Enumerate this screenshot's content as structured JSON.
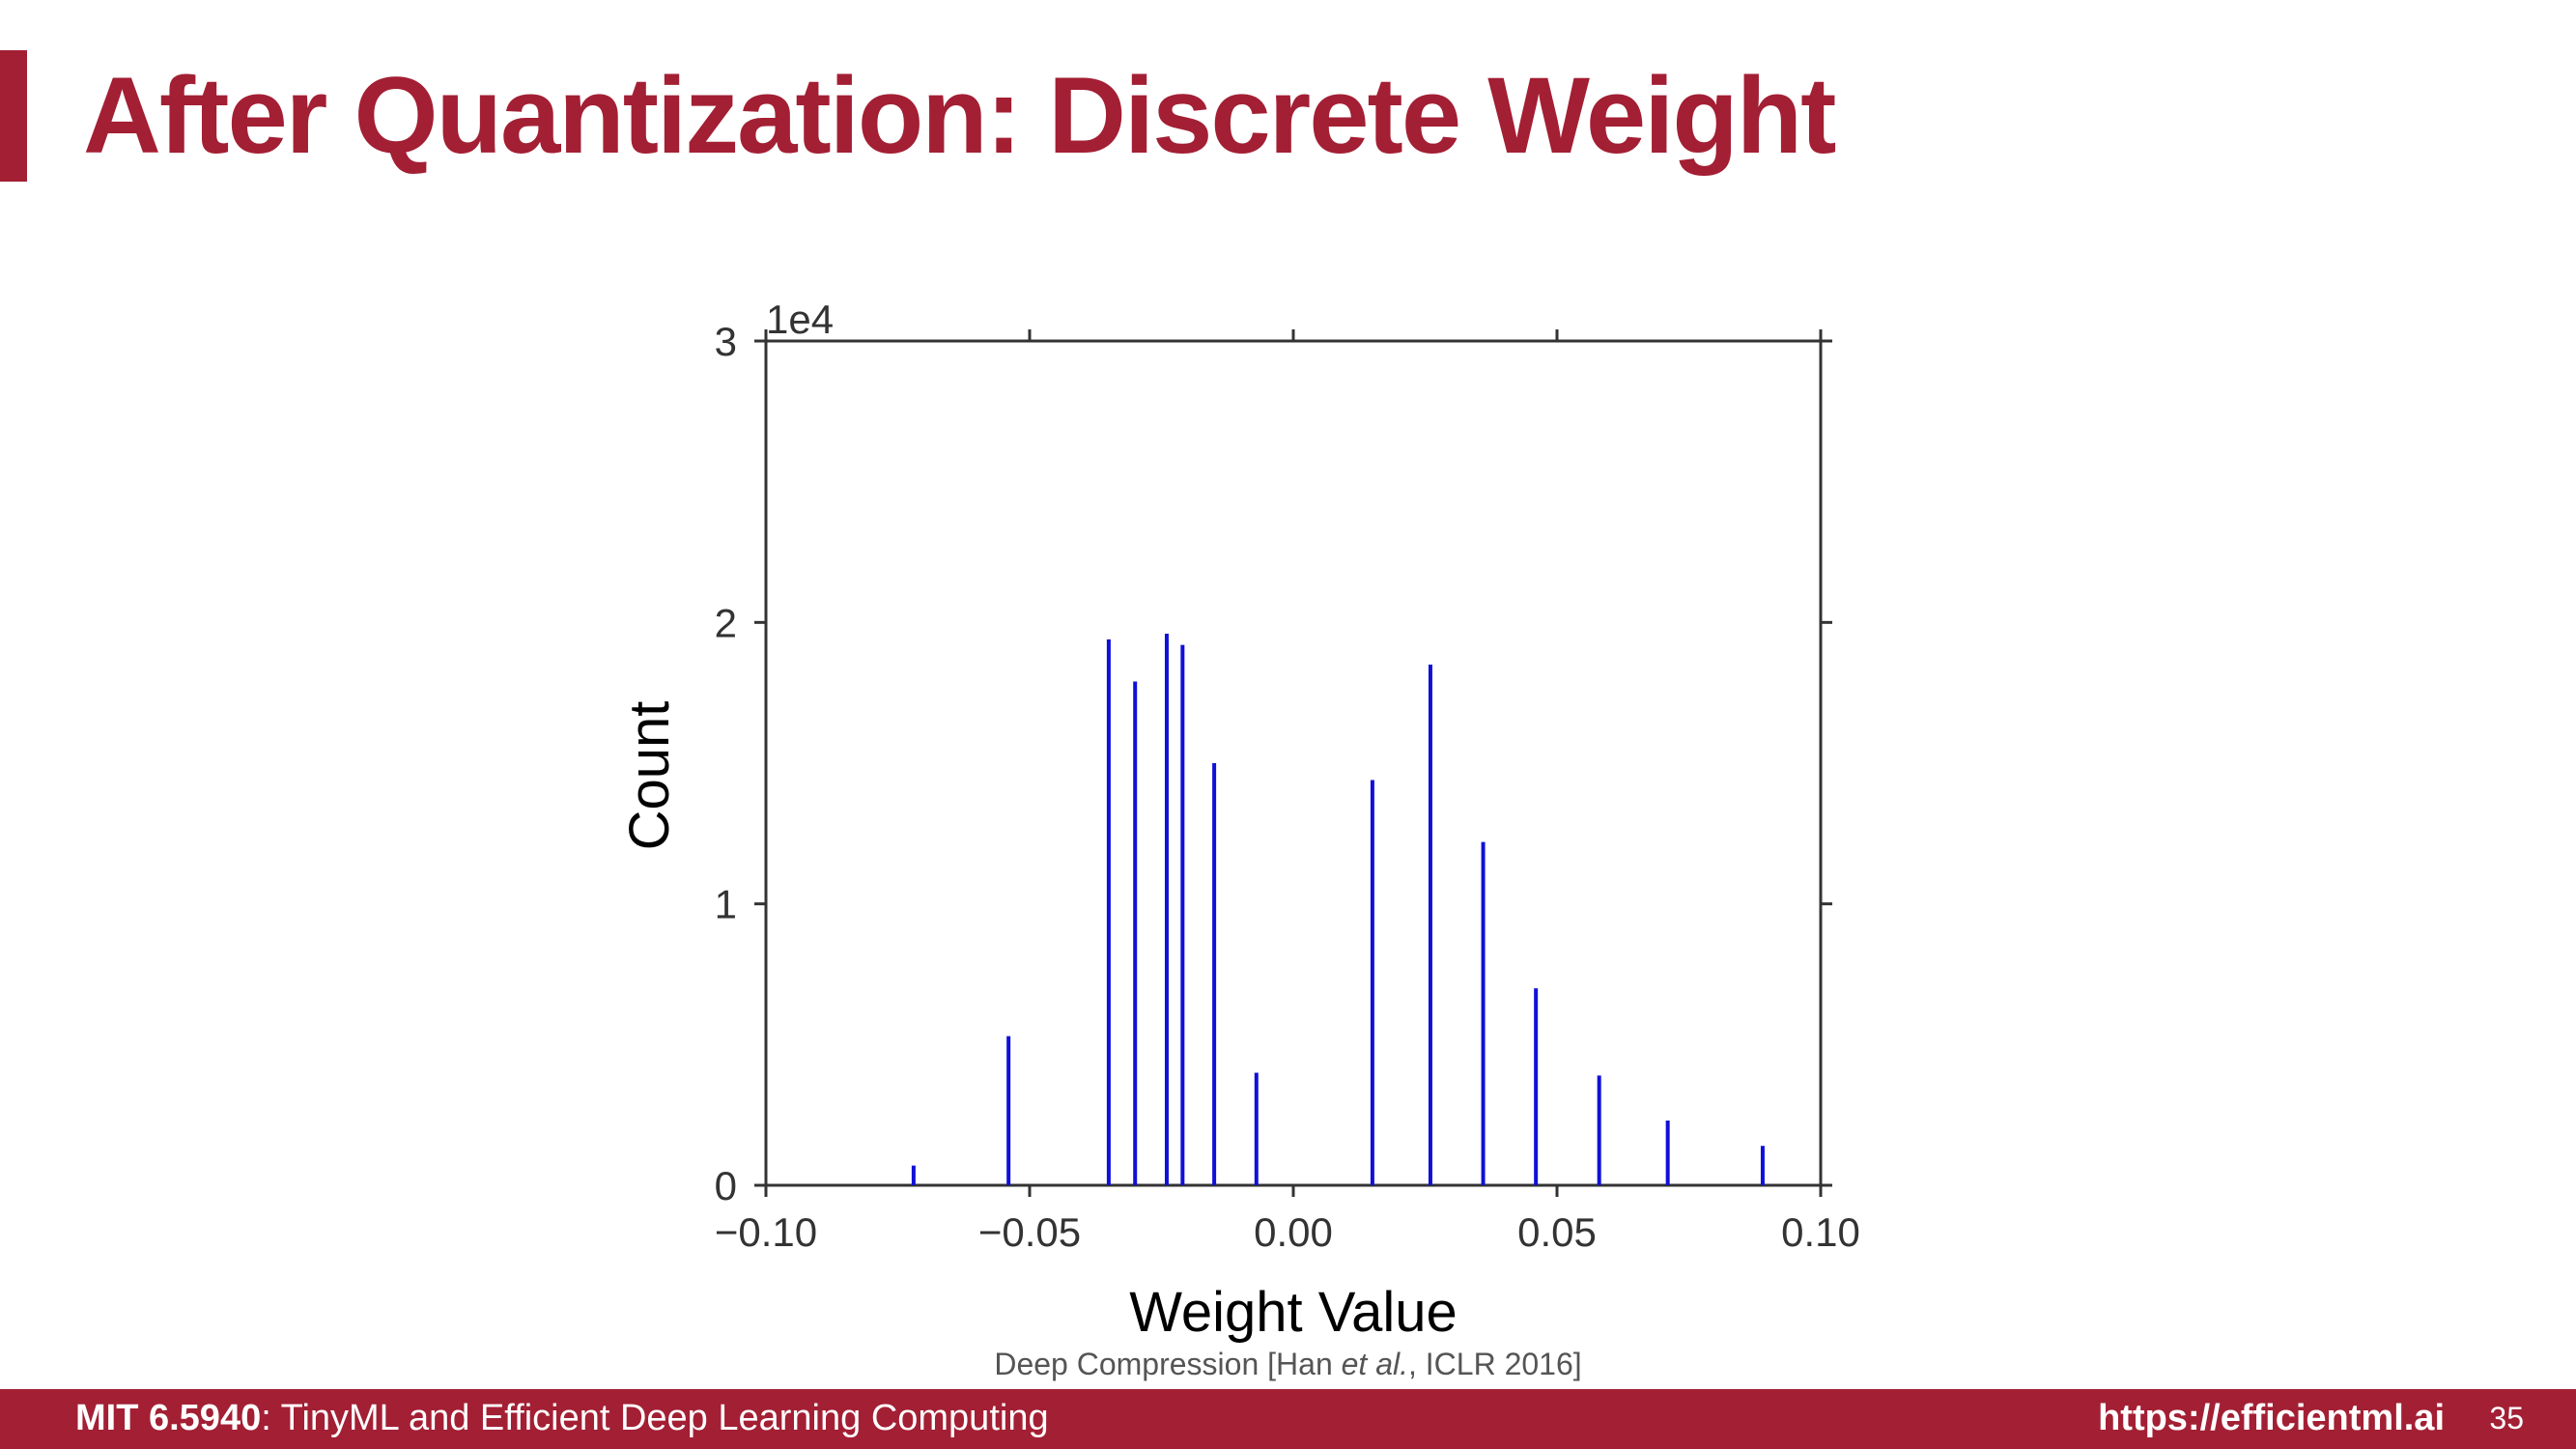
{
  "slide": {
    "title": "After Quantization: Discrete Weight",
    "citation": {
      "prefix": "Deep Compression [Han ",
      "italic": "et al.",
      "suffix": ", ICLR 2016]"
    }
  },
  "footer": {
    "course_code": "MIT 6.5940",
    "course_title": ": TinyML and Efficient Deep Learning Computing",
    "url": "https://efficientml.ai",
    "page_number": "35"
  },
  "chart_data": {
    "type": "bar",
    "xlabel": "Weight Value",
    "ylabel": "Count",
    "y_multiplier_label": "1e4",
    "xlim": [
      -0.1,
      0.1
    ],
    "ylim": [
      0,
      3
    ],
    "x_tick_labels": [
      "−0.10",
      "−0.05",
      "0.00",
      "0.05",
      "0.10"
    ],
    "x_ticks": [
      -0.1,
      -0.05,
      0.0,
      0.05,
      0.1
    ],
    "y_tick_labels": [
      "0",
      "1",
      "2",
      "3"
    ],
    "y_ticks": [
      0,
      1,
      2,
      3
    ],
    "bar_color": "#1010d8",
    "axis_color": "#333333",
    "grid": false,
    "x": [
      -0.072,
      -0.054,
      -0.035,
      -0.03,
      -0.024,
      -0.021,
      -0.015,
      -0.007,
      0.015,
      0.026,
      0.036,
      0.046,
      0.058,
      0.071,
      0.089
    ],
    "values": [
      0.07,
      0.53,
      1.94,
      1.79,
      1.96,
      1.92,
      1.5,
      0.4,
      1.44,
      1.85,
      1.22,
      0.7,
      0.39,
      0.23,
      0.14
    ]
  }
}
